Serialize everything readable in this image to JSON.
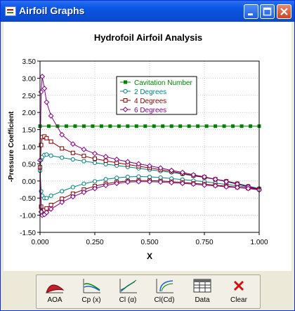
{
  "window": {
    "title": "Airfoil Graphs"
  },
  "chart_data": {
    "type": "line",
    "title": "Hydrofoil Airfoil Analysis",
    "xlabel": "X",
    "ylabel": "-Pressure Coefficient",
    "xlim": [
      0,
      1
    ],
    "ylim": [
      -1.5,
      3.5
    ],
    "x_ticks": [
      "0.000",
      "0.250",
      "0.500",
      "0.750",
      "1.000"
    ],
    "y_ticks": [
      "3.50",
      "3.00",
      "2.50",
      "2.00",
      "1.50",
      "1.00",
      "0.50",
      "0.00",
      "-0.50",
      "-1.00",
      "-1.50"
    ],
    "grid": true,
    "legend": "top-center",
    "series": [
      {
        "name": "Cavitation Number",
        "color": "#008000",
        "marker": "square-filled",
        "points": [
          [
            0.0,
            1.6
          ],
          [
            0.04,
            1.6
          ],
          [
            0.08,
            1.6
          ],
          [
            0.12,
            1.6
          ],
          [
            0.16,
            1.6
          ],
          [
            0.2,
            1.6
          ],
          [
            0.24,
            1.6
          ],
          [
            0.28,
            1.6
          ],
          [
            0.32,
            1.6
          ],
          [
            0.36,
            1.6
          ],
          [
            0.4,
            1.6
          ],
          [
            0.44,
            1.6
          ],
          [
            0.48,
            1.6
          ],
          [
            0.52,
            1.6
          ],
          [
            0.56,
            1.6
          ],
          [
            0.6,
            1.6
          ],
          [
            0.64,
            1.6
          ],
          [
            0.68,
            1.6
          ],
          [
            0.72,
            1.6
          ],
          [
            0.76,
            1.6
          ],
          [
            0.8,
            1.6
          ],
          [
            0.84,
            1.6
          ],
          [
            0.88,
            1.6
          ],
          [
            0.92,
            1.6
          ],
          [
            0.96,
            1.6
          ],
          [
            1.0,
            1.6
          ]
        ]
      },
      {
        "name": "2 Degrees",
        "color": "#008080",
        "marker": "circle",
        "upper": [
          [
            0.0,
            0.3
          ],
          [
            0.005,
            0.62
          ],
          [
            0.01,
            0.7
          ],
          [
            0.02,
            0.76
          ],
          [
            0.03,
            0.77
          ],
          [
            0.05,
            0.74
          ],
          [
            0.1,
            0.68
          ],
          [
            0.15,
            0.63
          ],
          [
            0.2,
            0.58
          ],
          [
            0.25,
            0.53
          ],
          [
            0.3,
            0.49
          ],
          [
            0.35,
            0.45
          ],
          [
            0.4,
            0.41
          ],
          [
            0.45,
            0.37
          ],
          [
            0.5,
            0.33
          ],
          [
            0.55,
            0.29
          ],
          [
            0.6,
            0.25
          ],
          [
            0.65,
            0.2
          ],
          [
            0.7,
            0.15
          ],
          [
            0.75,
            0.1
          ],
          [
            0.8,
            0.05
          ],
          [
            0.85,
            0.0
          ],
          [
            0.9,
            -0.07
          ],
          [
            0.95,
            -0.15
          ],
          [
            1.0,
            -0.22
          ]
        ],
        "lower": [
          [
            0.0,
            0.3
          ],
          [
            0.005,
            -0.3
          ],
          [
            0.01,
            -0.43
          ],
          [
            0.02,
            -0.5
          ],
          [
            0.03,
            -0.5
          ],
          [
            0.05,
            -0.43
          ],
          [
            0.1,
            -0.3
          ],
          [
            0.15,
            -0.18
          ],
          [
            0.2,
            -0.08
          ],
          [
            0.25,
            -0.01
          ],
          [
            0.3,
            0.05
          ],
          [
            0.35,
            0.09
          ],
          [
            0.4,
            0.12
          ],
          [
            0.45,
            0.13
          ],
          [
            0.5,
            0.12
          ],
          [
            0.55,
            0.1
          ],
          [
            0.6,
            0.07
          ],
          [
            0.65,
            0.04
          ],
          [
            0.7,
            0.01
          ],
          [
            0.75,
            -0.02
          ],
          [
            0.8,
            -0.06
          ],
          [
            0.85,
            -0.1
          ],
          [
            0.9,
            -0.14
          ],
          [
            0.95,
            -0.18
          ],
          [
            1.0,
            -0.22
          ]
        ]
      },
      {
        "name": "4 Degrees",
        "color": "#800000",
        "marker": "square",
        "upper": [
          [
            0.0,
            0.4
          ],
          [
            0.005,
            1.05
          ],
          [
            0.01,
            1.28
          ],
          [
            0.02,
            1.3
          ],
          [
            0.03,
            1.25
          ],
          [
            0.05,
            1.15
          ],
          [
            0.1,
            0.95
          ],
          [
            0.15,
            0.82
          ],
          [
            0.2,
            0.73
          ],
          [
            0.25,
            0.65
          ],
          [
            0.3,
            0.59
          ],
          [
            0.35,
            0.53
          ],
          [
            0.4,
            0.48
          ],
          [
            0.45,
            0.43
          ],
          [
            0.5,
            0.38
          ],
          [
            0.55,
            0.33
          ],
          [
            0.6,
            0.28
          ],
          [
            0.65,
            0.22
          ],
          [
            0.7,
            0.16
          ],
          [
            0.75,
            0.11
          ],
          [
            0.8,
            0.05
          ],
          [
            0.85,
            -0.01
          ],
          [
            0.9,
            -0.08
          ],
          [
            0.95,
            -0.16
          ],
          [
            1.0,
            -0.24
          ]
        ],
        "lower": [
          [
            0.0,
            0.4
          ],
          [
            0.005,
            -0.75
          ],
          [
            0.01,
            -0.88
          ],
          [
            0.02,
            -0.85
          ],
          [
            0.03,
            -0.8
          ],
          [
            0.05,
            -0.7
          ],
          [
            0.1,
            -0.52
          ],
          [
            0.15,
            -0.37
          ],
          [
            0.2,
            -0.25
          ],
          [
            0.25,
            -0.15
          ],
          [
            0.3,
            -0.08
          ],
          [
            0.35,
            -0.03
          ],
          [
            0.4,
            0.0
          ],
          [
            0.45,
            0.01
          ],
          [
            0.5,
            0.01
          ],
          [
            0.55,
            0.0
          ],
          [
            0.6,
            -0.02
          ],
          [
            0.65,
            -0.04
          ],
          [
            0.7,
            -0.07
          ],
          [
            0.75,
            -0.09
          ],
          [
            0.8,
            -0.12
          ],
          [
            0.85,
            -0.15
          ],
          [
            0.9,
            -0.18
          ],
          [
            0.95,
            -0.21
          ],
          [
            1.0,
            -0.24
          ]
        ]
      },
      {
        "name": "6 Degrees",
        "color": "#800080",
        "marker": "diamond",
        "upper": [
          [
            0.0,
            0.6
          ],
          [
            0.005,
            2.6
          ],
          [
            0.01,
            3.05
          ],
          [
            0.02,
            2.7
          ],
          [
            0.03,
            2.3
          ],
          [
            0.05,
            1.9
          ],
          [
            0.1,
            1.35
          ],
          [
            0.15,
            1.08
          ],
          [
            0.2,
            0.92
          ],
          [
            0.25,
            0.8
          ],
          [
            0.3,
            0.71
          ],
          [
            0.35,
            0.63
          ],
          [
            0.4,
            0.56
          ],
          [
            0.45,
            0.5
          ],
          [
            0.5,
            0.44
          ],
          [
            0.55,
            0.38
          ],
          [
            0.6,
            0.31
          ],
          [
            0.65,
            0.25
          ],
          [
            0.7,
            0.18
          ],
          [
            0.75,
            0.12
          ],
          [
            0.8,
            0.05
          ],
          [
            0.85,
            -0.02
          ],
          [
            0.9,
            -0.09
          ],
          [
            0.95,
            -0.17
          ],
          [
            1.0,
            -0.26
          ]
        ],
        "lower": [
          [
            0.0,
            0.6
          ],
          [
            0.005,
            -0.9
          ],
          [
            0.01,
            -1.0
          ],
          [
            0.02,
            -0.98
          ],
          [
            0.03,
            -0.92
          ],
          [
            0.05,
            -0.82
          ],
          [
            0.1,
            -0.62
          ],
          [
            0.15,
            -0.46
          ],
          [
            0.2,
            -0.33
          ],
          [
            0.25,
            -0.22
          ],
          [
            0.3,
            -0.13
          ],
          [
            0.35,
            -0.07
          ],
          [
            0.4,
            -0.03
          ],
          [
            0.45,
            -0.02
          ],
          [
            0.5,
            -0.02
          ],
          [
            0.55,
            -0.03
          ],
          [
            0.6,
            -0.05
          ],
          [
            0.65,
            -0.07
          ],
          [
            0.7,
            -0.09
          ],
          [
            0.75,
            -0.12
          ],
          [
            0.8,
            -0.14
          ],
          [
            0.85,
            -0.17
          ],
          [
            0.9,
            -0.19
          ],
          [
            0.95,
            -0.22
          ],
          [
            1.0,
            -0.26
          ]
        ]
      }
    ]
  },
  "toolbar": {
    "aoa": "AOA",
    "cp": "Cp (x)",
    "cl_alpha": "Cl (α)",
    "cl_cd": "Cl(Cd)",
    "data": "Data",
    "clear": "Clear"
  }
}
